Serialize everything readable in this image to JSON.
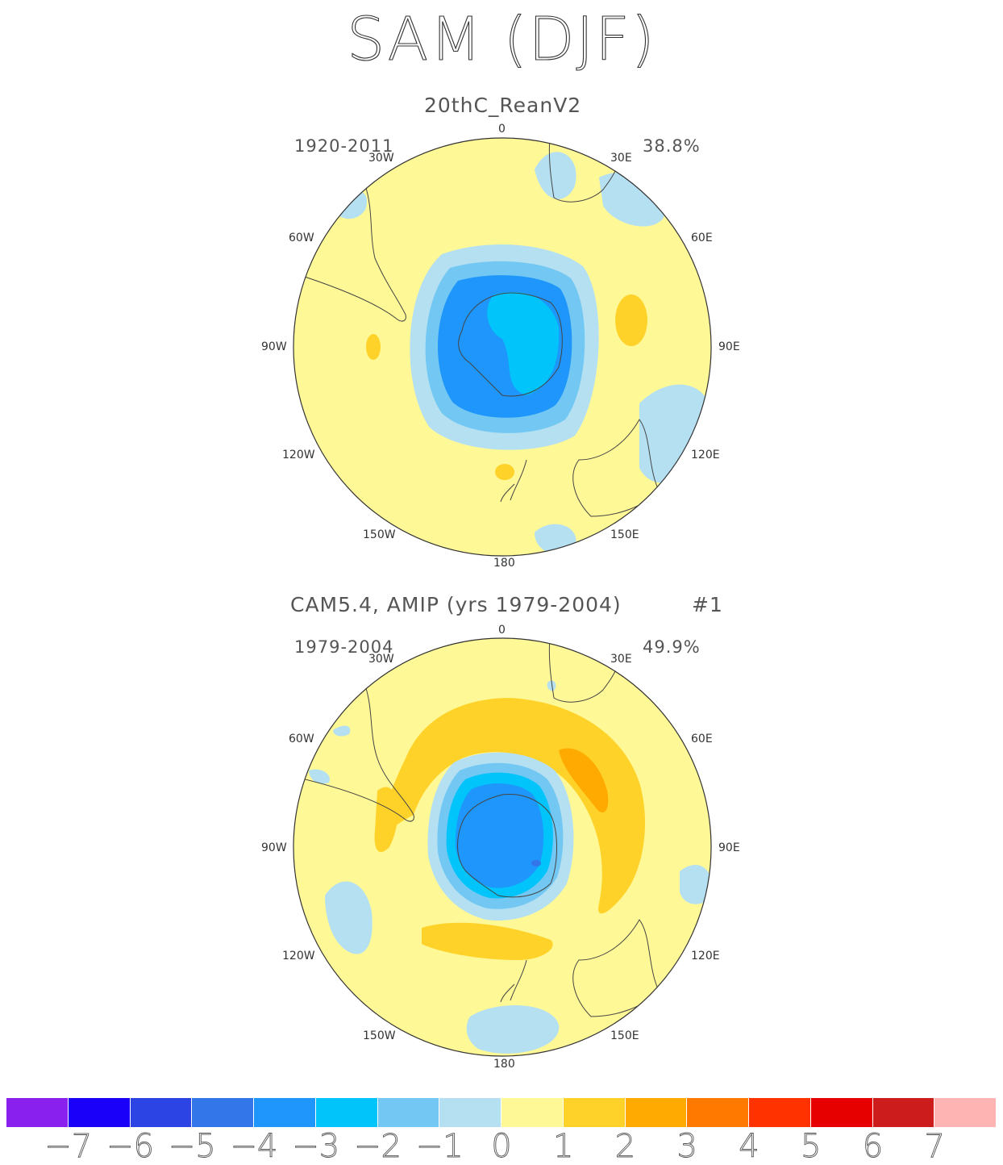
{
  "title": "SAM (DJF)",
  "panels": [
    {
      "title": "20thC_ReanV2",
      "period": "1920-2011",
      "variance": "38.8%",
      "number": ""
    },
    {
      "title": "CAM5.4, AMIP (yrs 1979-2004)",
      "period": "1979-2004",
      "variance": "49.9%",
      "number": "#1"
    }
  ],
  "longitude_labels": [
    "0",
    "30E",
    "60E",
    "90E",
    "120E",
    "150E",
    "180",
    "150W",
    "120W",
    "90W",
    "60W",
    "30W"
  ],
  "colorbar": {
    "colors": [
      "#8a20ee",
      "#1a00f8",
      "#2c44e4",
      "#3276ea",
      "#1f96fb",
      "#00c4fa",
      "#72c8f2",
      "#b4e0f2",
      "#fff897",
      "#ffd22a",
      "#ffaa00",
      "#ff7800",
      "#ff3200",
      "#e60000",
      "#cc1c1c",
      "#ffb4b4"
    ],
    "labels": [
      "-7",
      "-6",
      "-5",
      "-4",
      "-3",
      "-2",
      "-1",
      "0",
      "1",
      "2",
      "3",
      "4",
      "5",
      "6",
      "7"
    ]
  }
}
